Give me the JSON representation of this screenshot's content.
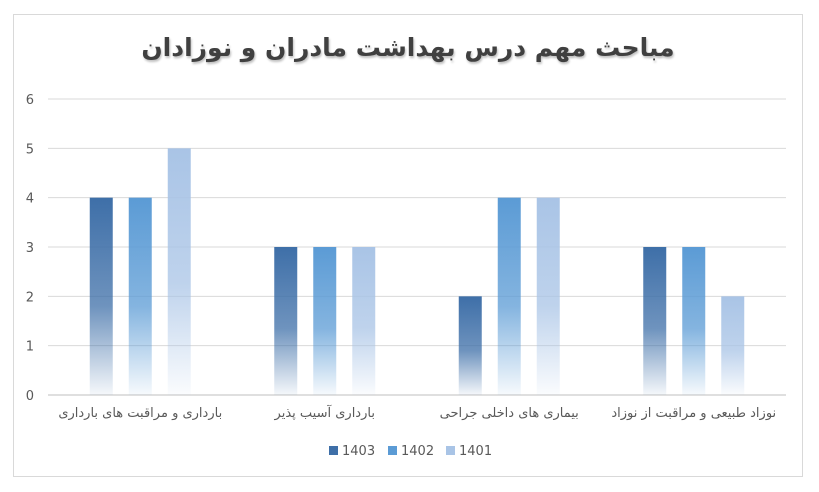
{
  "chart_data": {
    "type": "bar",
    "title": "مباحث مهم درس بهداشت مادران و نوزادان",
    "categories": [
      "بارداری و مراقبت های بارداری",
      "بارداری  آسیب پذیر",
      "بیماری های داخلی جراحی",
      "نوزاد طبیعی و مراقبت از نوزاد"
    ],
    "series": [
      {
        "name": "1403",
        "values": [
          4,
          3,
          2,
          3
        ],
        "color": "#3e6fa8"
      },
      {
        "name": "1402",
        "values": [
          4,
          3,
          4,
          3
        ],
        "color": "#5b9bd5"
      },
      {
        "name": "1401",
        "values": [
          5,
          3,
          4,
          2
        ],
        "color": "#a9c4e6"
      }
    ],
    "y_ticks": [
      "0",
      "1",
      "2",
      "3",
      "4",
      "5",
      "6"
    ],
    "ylim": [
      0,
      6
    ],
    "grid": true,
    "legend_position": "bottom"
  }
}
